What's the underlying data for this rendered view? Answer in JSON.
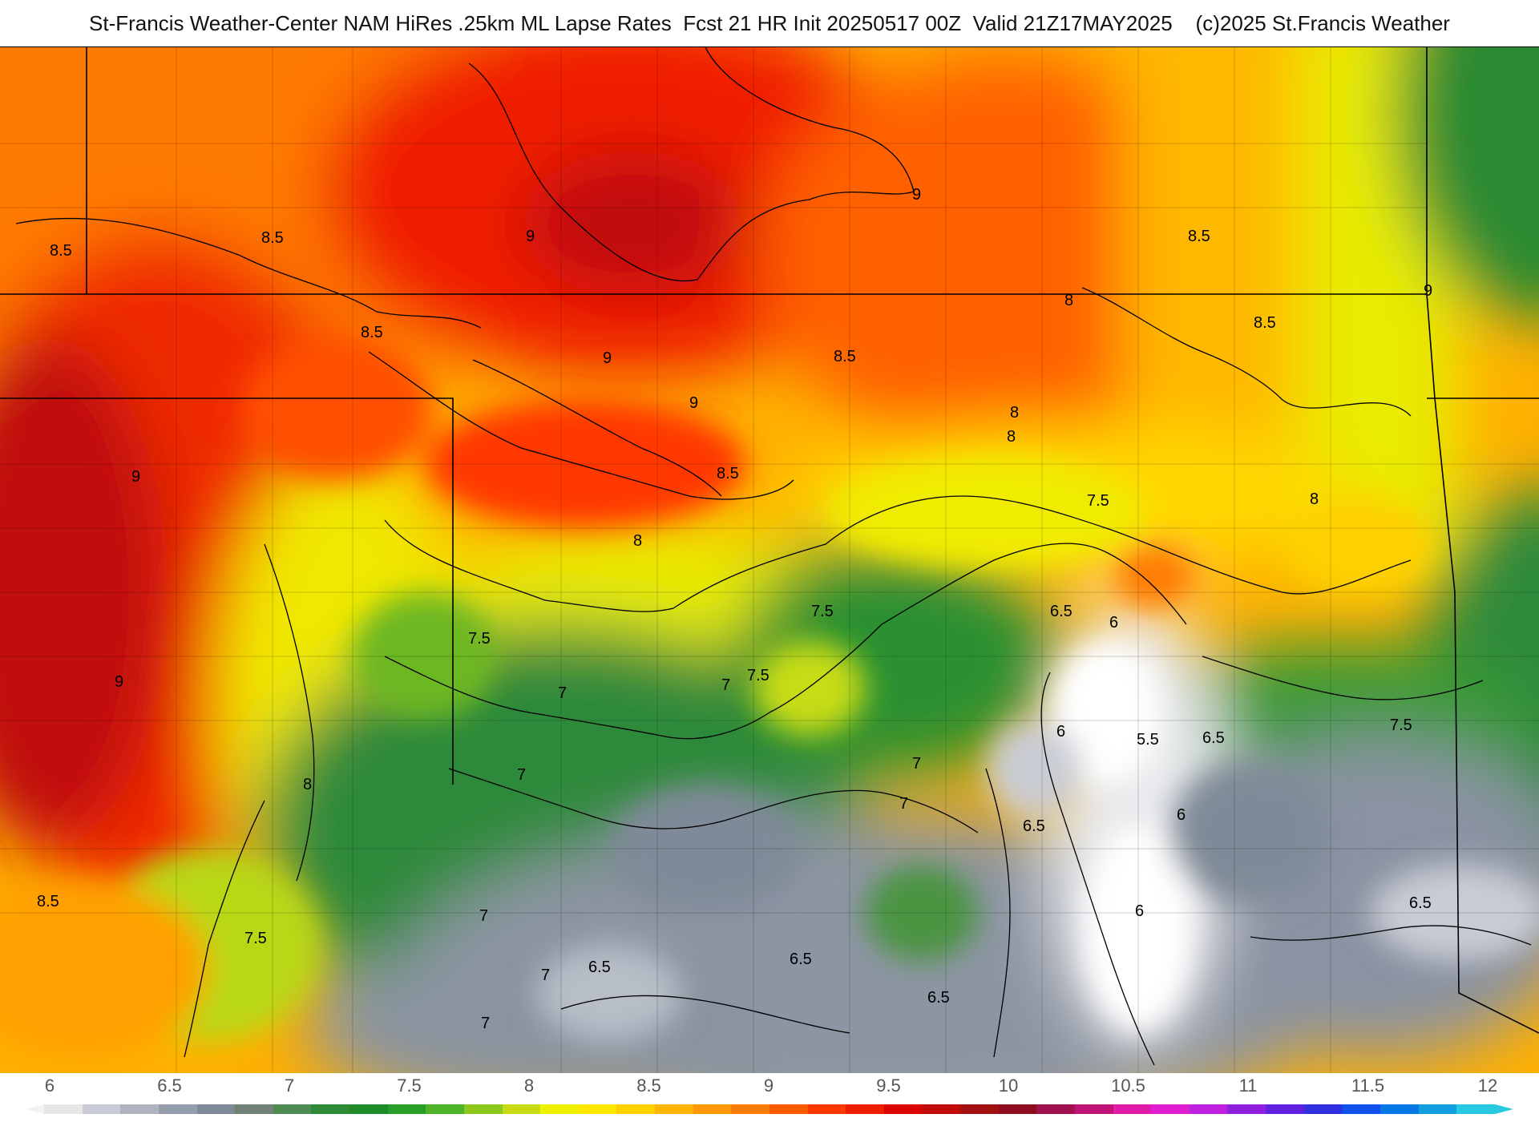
{
  "header": {
    "title": "St-Francis Weather-Center NAM HiRes .25km ML Lapse Rates  Fcst 21 HR Init 20250517 00Z  Valid 21Z17MAY2025    (c)2025 St.Francis Weather"
  },
  "colorbar": {
    "ticks": [
      "6",
      "6.5",
      "7",
      "7.5",
      "8",
      "8.5",
      "9",
      "9.5",
      "10",
      "10.5",
      "11",
      "11.5",
      "12"
    ],
    "colors": [
      "#e6e6e9",
      "#c9ccd4",
      "#aeb3be",
      "#959cab",
      "#7f8a98",
      "#6f8275",
      "#4e8a52",
      "#2f8a3a",
      "#1f8a2a",
      "#27a02a",
      "#4fb42a",
      "#8cc81e",
      "#c8dc14",
      "#f0f000",
      "#ffe600",
      "#ffd000",
      "#ffb400",
      "#ff9800",
      "#ff7c00",
      "#ff5a00",
      "#ff3800",
      "#f01c00",
      "#dc0000",
      "#c00808",
      "#a01010",
      "#8c0c20",
      "#a0104c",
      "#c01478",
      "#e01ca8",
      "#e020d0",
      "#c020e0",
      "#9020e0",
      "#6020e0",
      "#3030e0",
      "#1050f0",
      "#0878e8",
      "#10a0e0",
      "#28c8e0"
    ]
  },
  "map": {
    "contour_labels": [
      {
        "text": "8.5"
      },
      {
        "text": "8.5"
      },
      {
        "text": "9"
      },
      {
        "text": "9"
      },
      {
        "text": "8.5"
      },
      {
        "text": "8.5"
      },
      {
        "text": "8"
      },
      {
        "text": "8.5"
      },
      {
        "text": "9"
      },
      {
        "text": "9"
      },
      {
        "text": "8.5"
      },
      {
        "text": "9"
      },
      {
        "text": "8"
      },
      {
        "text": "8"
      },
      {
        "text": "8"
      },
      {
        "text": "8.5"
      },
      {
        "text": "7.5"
      },
      {
        "text": "8"
      },
      {
        "text": "7.5"
      },
      {
        "text": "9"
      },
      {
        "text": "7.5"
      },
      {
        "text": "7.5"
      },
      {
        "text": "7"
      },
      {
        "text": "6.5"
      },
      {
        "text": "6"
      },
      {
        "text": "7"
      },
      {
        "text": "7"
      },
      {
        "text": "6"
      },
      {
        "text": "5.5"
      },
      {
        "text": "6.5"
      },
      {
        "text": "7"
      },
      {
        "text": "7.5"
      },
      {
        "text": "9"
      },
      {
        "text": "8"
      },
      {
        "text": "7"
      },
      {
        "text": "7"
      },
      {
        "text": "6.5"
      },
      {
        "text": "6"
      },
      {
        "text": "6"
      },
      {
        "text": "8.5"
      },
      {
        "text": "7.5"
      },
      {
        "text": "7"
      },
      {
        "text": "7"
      },
      {
        "text": "6.5"
      },
      {
        "text": "6.5"
      },
      {
        "text": "6.5"
      },
      {
        "text": "6.5"
      }
    ]
  }
}
